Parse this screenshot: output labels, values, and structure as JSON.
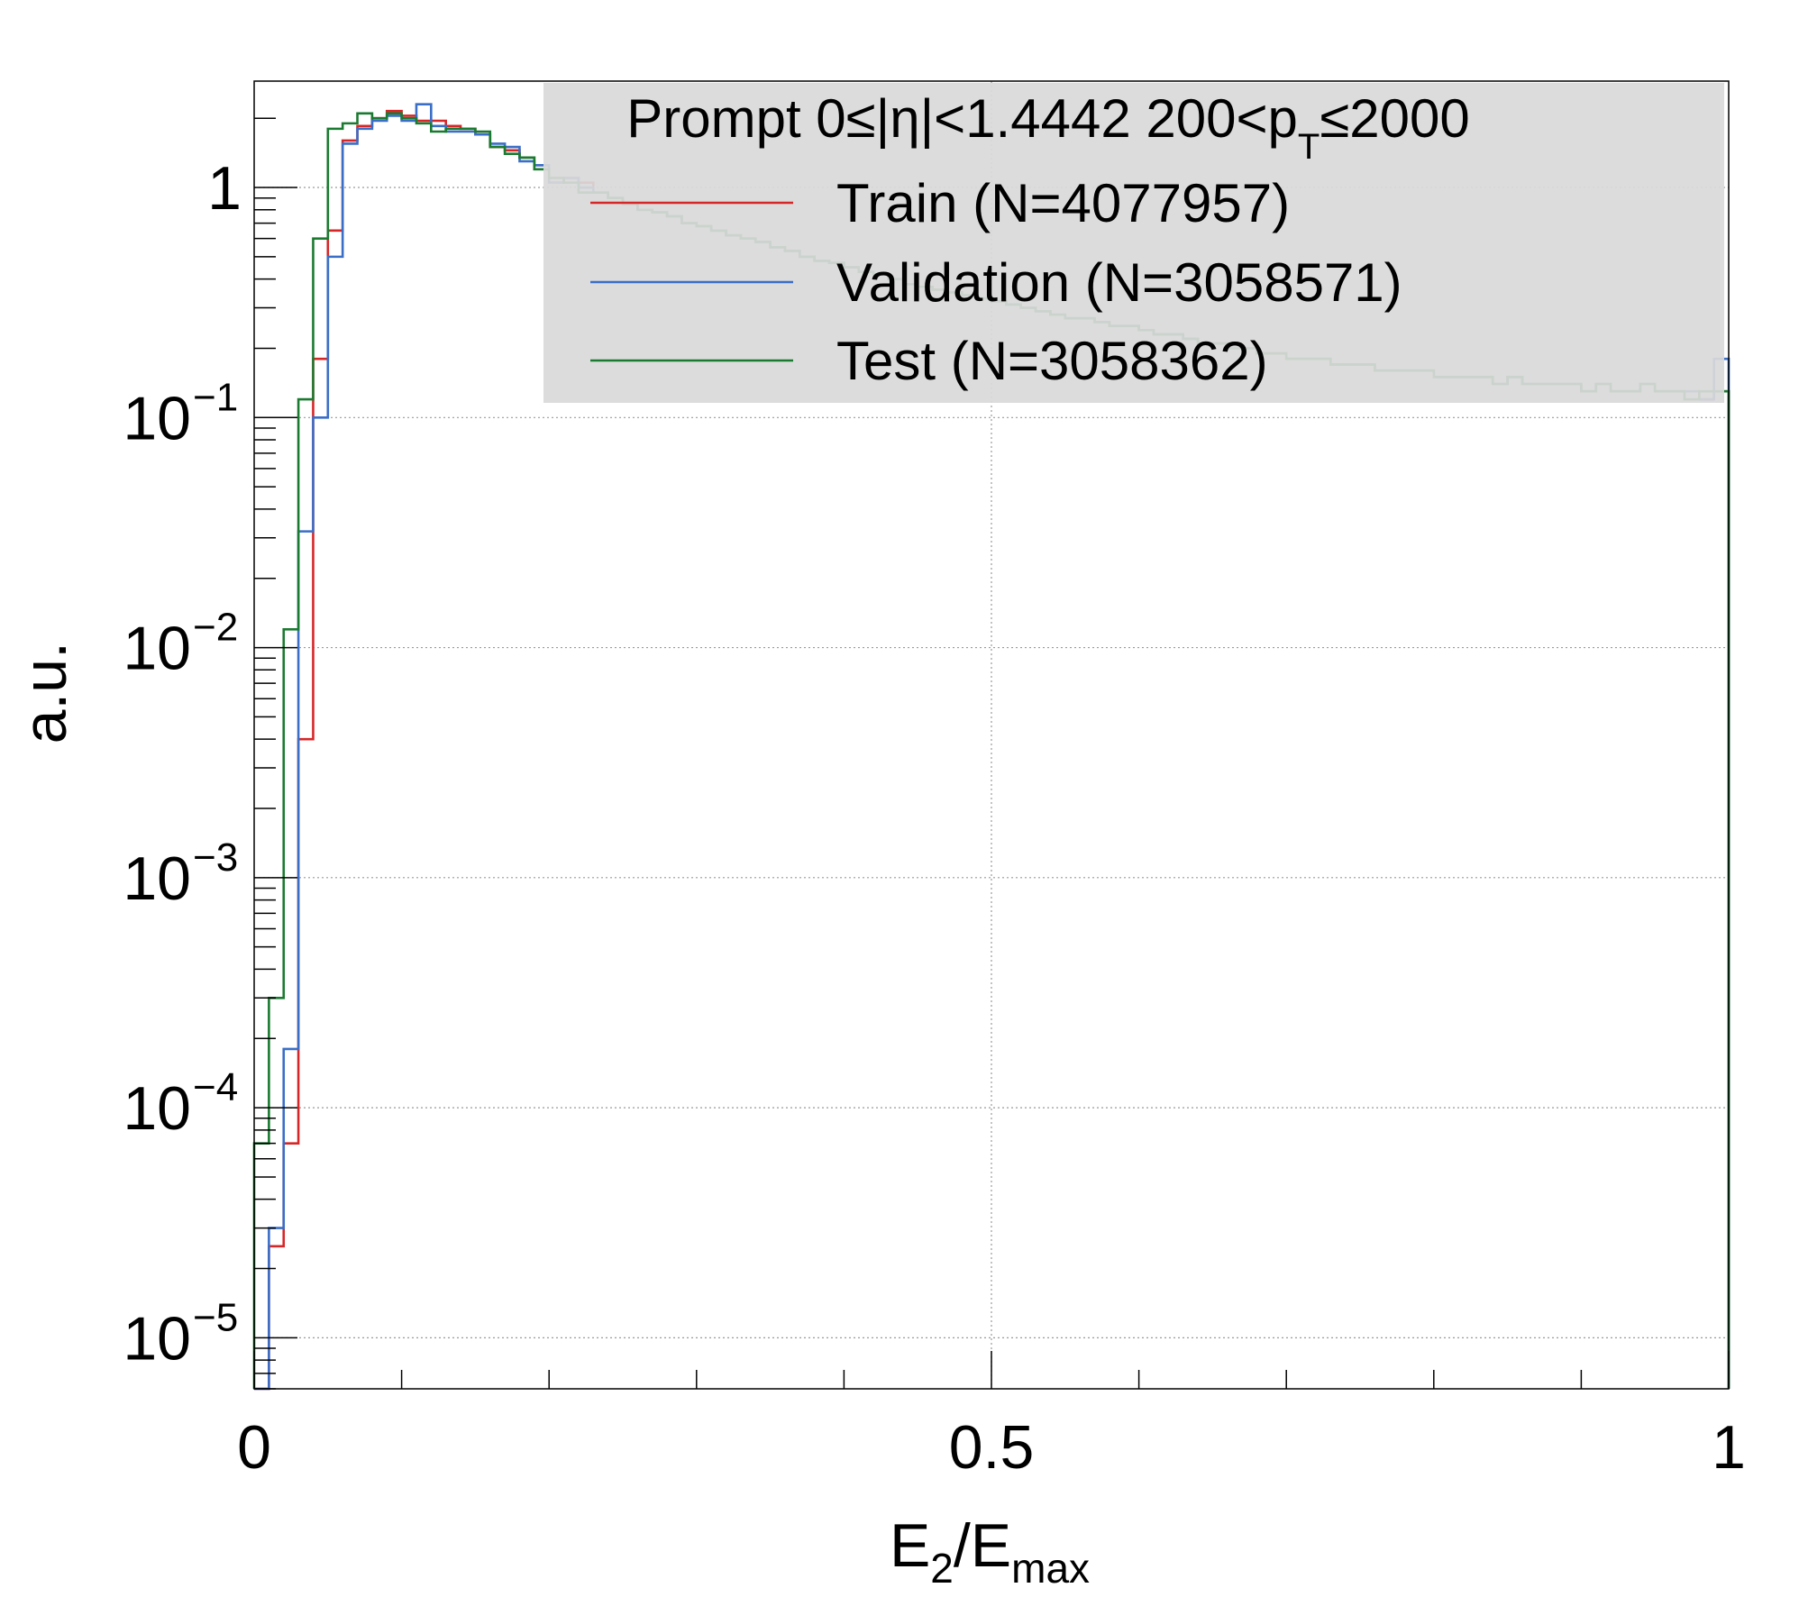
{
  "chart_data": {
    "type": "line",
    "xlabel": {
      "main": "E",
      "sub1": "2",
      "slash": "/E",
      "sub2": "max"
    },
    "ylabel": "a.u.",
    "xlim": [
      0,
      1
    ],
    "ylim": [
      6e-06,
      2.9
    ],
    "log_y": true,
    "grid": true,
    "legend_placement": "top-right",
    "legend": {
      "header": {
        "pre": "Prompt  0≤|η|<1.4442  200<p",
        "sub": "T",
        "post": "≤2000"
      },
      "background": "#d9d9d9"
    },
    "x_ticks": [
      {
        "value": 0,
        "label": "0"
      },
      {
        "value": 0.5,
        "label": "0.5"
      },
      {
        "value": 1,
        "label": "1"
      }
    ],
    "y_ticks": [
      {
        "value": 1,
        "base": "1",
        "exp": ""
      },
      {
        "value": 0.1,
        "base": "10",
        "exp": "−1"
      },
      {
        "value": 0.01,
        "base": "10",
        "exp": "−2"
      },
      {
        "value": 0.001,
        "base": "10",
        "exp": "−3"
      },
      {
        "value": 0.0001,
        "base": "10",
        "exp": "−4"
      },
      {
        "value": 1e-05,
        "base": "10",
        "exp": "−5"
      }
    ],
    "bin_width": 0.01,
    "series": [
      {
        "name": "Train (N=4077957)",
        "color": "#d62728",
        "values": [
          5e-06,
          2.5e-05,
          7e-05,
          0.004,
          0.18,
          0.65,
          1.6,
          1.85,
          2.0,
          2.15,
          2.05,
          1.95,
          1.95,
          1.85,
          1.8,
          1.7,
          1.5,
          1.45,
          1.35,
          1.25,
          1.05,
          1.1,
          1.05,
          0.95,
          0.9,
          0.85,
          0.8,
          0.78,
          0.75,
          0.7,
          0.68,
          0.65,
          0.62,
          0.6,
          0.58,
          0.55,
          0.53,
          0.5,
          0.48,
          0.47,
          0.45,
          0.43,
          0.42,
          0.4,
          0.38,
          0.37,
          0.36,
          0.35,
          0.34,
          0.33,
          0.32,
          0.31,
          0.3,
          0.29,
          0.28,
          0.27,
          0.27,
          0.26,
          0.25,
          0.25,
          0.24,
          0.23,
          0.23,
          0.22,
          0.21,
          0.21,
          0.2,
          0.2,
          0.19,
          0.19,
          0.18,
          0.18,
          0.18,
          0.17,
          0.17,
          0.17,
          0.16,
          0.16,
          0.16,
          0.16,
          0.15,
          0.15,
          0.15,
          0.15,
          0.14,
          0.15,
          0.14,
          0.14,
          0.14,
          0.14,
          0.13,
          0.14,
          0.13,
          0.13,
          0.14,
          0.13,
          0.13,
          0.13,
          0.12,
          0.13
        ]
      },
      {
        "name": "Validation (N=3058571)",
        "color": "#3a6ec7",
        "values": [
          5e-06,
          3e-05,
          0.00018,
          0.032,
          0.1,
          0.5,
          1.55,
          1.8,
          1.95,
          2.05,
          1.95,
          2.3,
          1.85,
          1.75,
          1.75,
          1.7,
          1.55,
          1.5,
          1.3,
          1.25,
          1.05,
          1.1,
          1.0,
          0.95,
          0.9,
          0.85,
          0.8,
          0.78,
          0.75,
          0.7,
          0.68,
          0.65,
          0.62,
          0.6,
          0.58,
          0.55,
          0.53,
          0.5,
          0.48,
          0.47,
          0.45,
          0.43,
          0.42,
          0.4,
          0.38,
          0.37,
          0.36,
          0.35,
          0.34,
          0.33,
          0.32,
          0.31,
          0.3,
          0.29,
          0.28,
          0.27,
          0.27,
          0.26,
          0.25,
          0.25,
          0.24,
          0.23,
          0.23,
          0.22,
          0.21,
          0.21,
          0.2,
          0.2,
          0.19,
          0.19,
          0.18,
          0.18,
          0.18,
          0.17,
          0.17,
          0.17,
          0.16,
          0.16,
          0.16,
          0.16,
          0.15,
          0.15,
          0.15,
          0.15,
          0.14,
          0.15,
          0.14,
          0.14,
          0.14,
          0.14,
          0.13,
          0.14,
          0.13,
          0.13,
          0.14,
          0.13,
          0.13,
          0.13,
          0.12,
          0.18
        ]
      },
      {
        "name": "Test (N=3058362)",
        "color": "#1a7a30",
        "values": [
          7e-05,
          0.0003,
          0.012,
          0.12,
          0.6,
          1.8,
          1.9,
          2.1,
          2.0,
          2.1,
          2.0,
          1.9,
          1.75,
          1.8,
          1.8,
          1.75,
          1.5,
          1.4,
          1.35,
          1.2,
          1.1,
          1.05,
          0.95,
          0.95,
          0.9,
          0.85,
          0.8,
          0.78,
          0.75,
          0.7,
          0.68,
          0.65,
          0.62,
          0.6,
          0.58,
          0.55,
          0.53,
          0.5,
          0.48,
          0.47,
          0.45,
          0.43,
          0.42,
          0.4,
          0.38,
          0.37,
          0.36,
          0.35,
          0.34,
          0.33,
          0.32,
          0.31,
          0.3,
          0.29,
          0.28,
          0.27,
          0.27,
          0.26,
          0.25,
          0.25,
          0.24,
          0.23,
          0.23,
          0.22,
          0.21,
          0.21,
          0.2,
          0.2,
          0.19,
          0.19,
          0.18,
          0.18,
          0.18,
          0.17,
          0.17,
          0.17,
          0.16,
          0.16,
          0.16,
          0.16,
          0.15,
          0.15,
          0.15,
          0.15,
          0.14,
          0.15,
          0.14,
          0.14,
          0.14,
          0.14,
          0.13,
          0.14,
          0.13,
          0.13,
          0.14,
          0.13,
          0.13,
          0.12,
          0.13,
          0.13
        ]
      }
    ]
  }
}
